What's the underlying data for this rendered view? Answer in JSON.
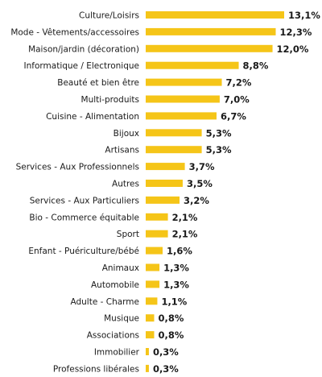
{
  "chart_data": {
    "type": "bar",
    "orientation": "horizontal",
    "categories": [
      "Culture/Loisirs",
      "Mode  - Vêtements/accessoires",
      "Maison/jardin (décoration)",
      "Informatique / Electronique",
      "Beauté et bien être",
      "Multi-produits",
      "Cuisine  - Alimentation",
      "Bijoux",
      "Artisans",
      "Services - Aux Professionnels",
      "Autres",
      "Services - Aux Particuliers",
      "Bio - Commerce équitable",
      "Sport",
      "Enfant - Puériculture/bébé",
      "Animaux",
      "Automobile",
      "Adulte - Charme",
      "Musique",
      "Associations",
      "Immobilier",
      "Professions libérales"
    ],
    "values": [
      13.1,
      12.3,
      12.0,
      8.8,
      7.2,
      7.0,
      6.7,
      5.3,
      5.3,
      3.7,
      3.5,
      3.2,
      2.1,
      2.1,
      1.6,
      1.3,
      1.3,
      1.1,
      0.8,
      0.8,
      0.3,
      0.3
    ],
    "value_labels": [
      "13,1%",
      "12,3%",
      "12,0%",
      "8,8%",
      "7,2%",
      "7,0%",
      "6,7%",
      "5,3%",
      "5,3%",
      "3,7%",
      "3,5%",
      "3,2%",
      "2,1%",
      "2,1%",
      "1,6%",
      "1,3%",
      "1,3%",
      "1,1%",
      "0,8%",
      "0,8%",
      "0,3%",
      "0,3%"
    ],
    "unit": "%",
    "xlim": [
      0,
      13.1
    ],
    "grid": false,
    "legend": "none",
    "bar_color": "#F5C518"
  }
}
